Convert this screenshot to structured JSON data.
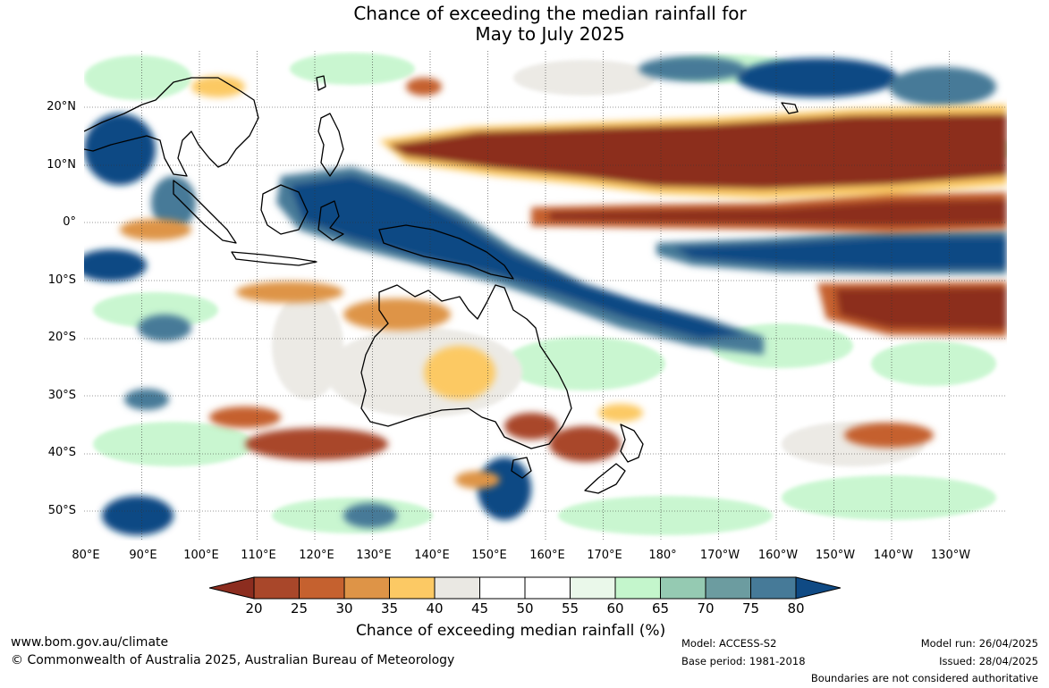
{
  "title_line1": "Chance of exceeding the median rainfall for",
  "title_line2": "May to July 2025",
  "lat_labels": [
    "20°N",
    "10°N",
    "0°",
    "10°S",
    "20°S",
    "30°S",
    "40°S",
    "50°S"
  ],
  "lon_labels": [
    "80°E",
    "90°E",
    "100°E",
    "110°E",
    "120°E",
    "130°E",
    "140°E",
    "150°E",
    "160°E",
    "170°E",
    "180°",
    "170°W",
    "160°W",
    "150°W",
    "140°W",
    "130°W"
  ],
  "colorbar": {
    "ticks": [
      "20",
      "25",
      "30",
      "35",
      "40",
      "45",
      "50",
      "55",
      "60",
      "65",
      "70",
      "75",
      "80"
    ],
    "colors": [
      "#8c2d1f",
      "#a9472a",
      "#c5612f",
      "#de9447",
      "#fcc964",
      "#eae8e3",
      "#ffffff",
      "#ffffff",
      "#eaf8ea",
      "#c4f6cc",
      "#95cab2",
      "#6c9ca0",
      "#467a98",
      "#0f4a84"
    ],
    "label": "Chance of exceeding median rainfall (%)"
  },
  "footer": {
    "website": "www.bom.gov.au/climate",
    "copyright": "© Commonwealth of Australia 2025, Australian Bureau of Meteorology",
    "model": "Model: ACCESS-S2",
    "base_period": "Base period: 1981-2018",
    "model_run": "Model run: 26/04/2025",
    "issued": "Issued: 28/04/2025",
    "disclaimer": "Boundaries are not considered authoritative"
  }
}
